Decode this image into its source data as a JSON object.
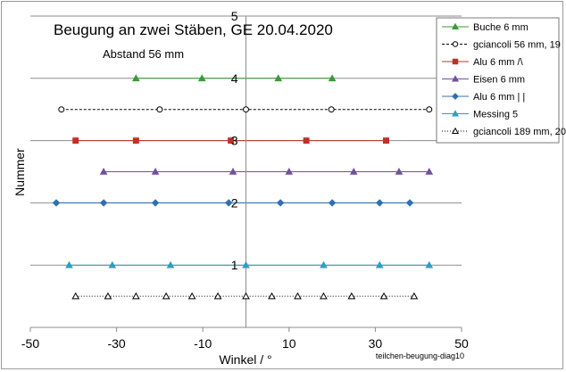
{
  "chart_data": {
    "type": "scatter",
    "title": "Beugung an zwei Stäben, GE  20.04.2020",
    "subtitle": "Abstand 56 mm",
    "xlabel": "Winkel / °",
    "ylabel": "Nummer",
    "xlim": [
      -50,
      50
    ],
    "ylim": [
      0,
      5
    ],
    "xticks": [
      -50,
      -30,
      -10,
      10,
      30,
      50
    ],
    "yticks": [
      1,
      2,
      3,
      4,
      5
    ],
    "footer": "teilchen-beugung-diag10",
    "grid": "horizontal",
    "legend_position": "right",
    "series": [
      {
        "name": "Buche 6 mm",
        "color": "#3a9a3a",
        "marker": "triangle",
        "line": "solid",
        "y": 4.0,
        "x": [
          -25.5,
          -10.2,
          7.5,
          20.0
        ]
      },
      {
        "name": "gciancoli  56 mm, 19",
        "color": "#7a4a10",
        "marker": "circle-open",
        "line": "dashed",
        "y": 3.5,
        "x": [
          -42.8,
          -20.0,
          0.0,
          19.8,
          42.5
        ]
      },
      {
        "name": "Alu 6 mm /\\",
        "color": "#c0302a",
        "marker": "square",
        "line": "solid",
        "y": 3.0,
        "x": [
          -39.5,
          -25.5,
          -3.5,
          14.0,
          32.5
        ]
      },
      {
        "name": "Eisen 6 mm",
        "color": "#7050a0",
        "marker": "triangle",
        "line": "solid",
        "y": 2.5,
        "x": [
          -33.0,
          -21.0,
          -3.0,
          10.0,
          25.0,
          35.5,
          42.5
        ]
      },
      {
        "name": "Alu 6 mm  | |",
        "color": "#3070b0",
        "marker": "diamond",
        "line": "solid",
        "y": 2.0,
        "x": [
          -44.0,
          -33.0,
          -21.0,
          -4.0,
          8.0,
          20.0,
          31.0,
          38.0
        ]
      },
      {
        "name": "Messing 5",
        "color": "#2aa0c0",
        "marker": "triangle",
        "line": "solid",
        "y": 1.0,
        "x": [
          -41.0,
          -31.0,
          -17.5,
          0.0,
          18.0,
          31.0,
          42.5
        ]
      },
      {
        "name": "gciancoli 189 mm, 20",
        "color": "#444444",
        "marker": "triangle-open",
        "line": "dotted",
        "y": 0.5,
        "x": [
          -39.5,
          -32.0,
          -25.5,
          -18.5,
          -12.5,
          -6.5,
          0.0,
          6.0,
          12.0,
          18.0,
          24.5,
          32.0,
          39.0
        ]
      }
    ]
  }
}
